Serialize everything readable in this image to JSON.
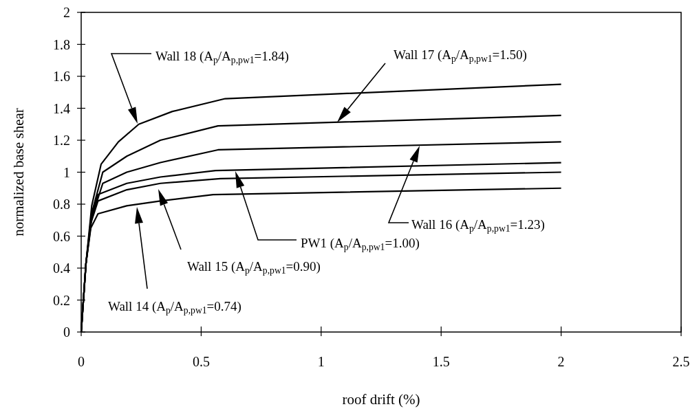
{
  "chart_data": {
    "type": "line",
    "xlabel": "roof drift (%)",
    "ylabel": "normalized base shear",
    "xlim": [
      0,
      2.5
    ],
    "xticks": [
      0,
      0.5,
      1,
      1.5,
      2,
      2.5
    ],
    "ylim": [
      0,
      2
    ],
    "yticks": [
      0,
      0.2,
      0.4,
      0.6,
      0.8,
      1,
      1.2,
      1.4,
      1.6,
      1.8,
      2
    ],
    "grid": false,
    "marker": "none",
    "line_style": "solid",
    "series": [
      {
        "color": "#000000",
        "x": [
          0,
          0.02,
          0.044,
          0.083,
          0.155,
          0.24,
          0.38,
          0.6,
          2
        ],
        "values": [
          0,
          0.43,
          0.79,
          1.05,
          1.19,
          1.3,
          1.38,
          1.46,
          1.55
        ]
      },
      {
        "color": "#000000",
        "x": [
          0,
          0.02,
          0.045,
          0.09,
          0.19,
          0.33,
          0.57,
          2
        ],
        "values": [
          0,
          0.43,
          0.75,
          1.0,
          1.1,
          1.2,
          1.29,
          1.355
        ]
      },
      {
        "color": "#000000",
        "x": [
          0,
          0.02,
          0.045,
          0.09,
          0.19,
          0.33,
          0.57,
          2
        ],
        "values": [
          0,
          0.43,
          0.72,
          0.93,
          1.0,
          1.06,
          1.14,
          1.19
        ]
      },
      {
        "color": "#000000",
        "x": [
          0,
          0.02,
          0.04,
          0.07,
          0.19,
          0.33,
          0.56,
          2
        ],
        "values": [
          0,
          0.43,
          0.7,
          0.86,
          0.93,
          0.97,
          1.01,
          1.06
        ]
      },
      {
        "color": "#000000",
        "x": [
          0,
          0.02,
          0.04,
          0.07,
          0.19,
          0.33,
          0.58,
          2
        ],
        "values": [
          0,
          0.43,
          0.68,
          0.82,
          0.89,
          0.93,
          0.96,
          1.0
        ]
      },
      {
        "color": "#000000",
        "x": [
          0,
          0.02,
          0.04,
          0.07,
          0.19,
          0.33,
          0.55,
          2
        ],
        "values": [
          0,
          0.43,
          0.65,
          0.74,
          0.79,
          0.82,
          0.86,
          0.9
        ]
      }
    ],
    "annotations": [
      "Wall 18 (A$_{p}$/A$_{p,pw1}$=1.84)",
      "Wall 17 (A$_{p}$/A$_{p,pw1}$=1.50)",
      "Wall 16 (A$_{p}$/A$_{p,pw1}$=1.23)",
      "PW1 (A$_{p}$/A$_{p,pw1}$=1.00)",
      "Wall 15 (A$_{p}$/A$_{p,pw1}$=0.90)",
      "Wall 14 (A$_{p}$/A$_{p,pw1}$=0.74)"
    ]
  }
}
